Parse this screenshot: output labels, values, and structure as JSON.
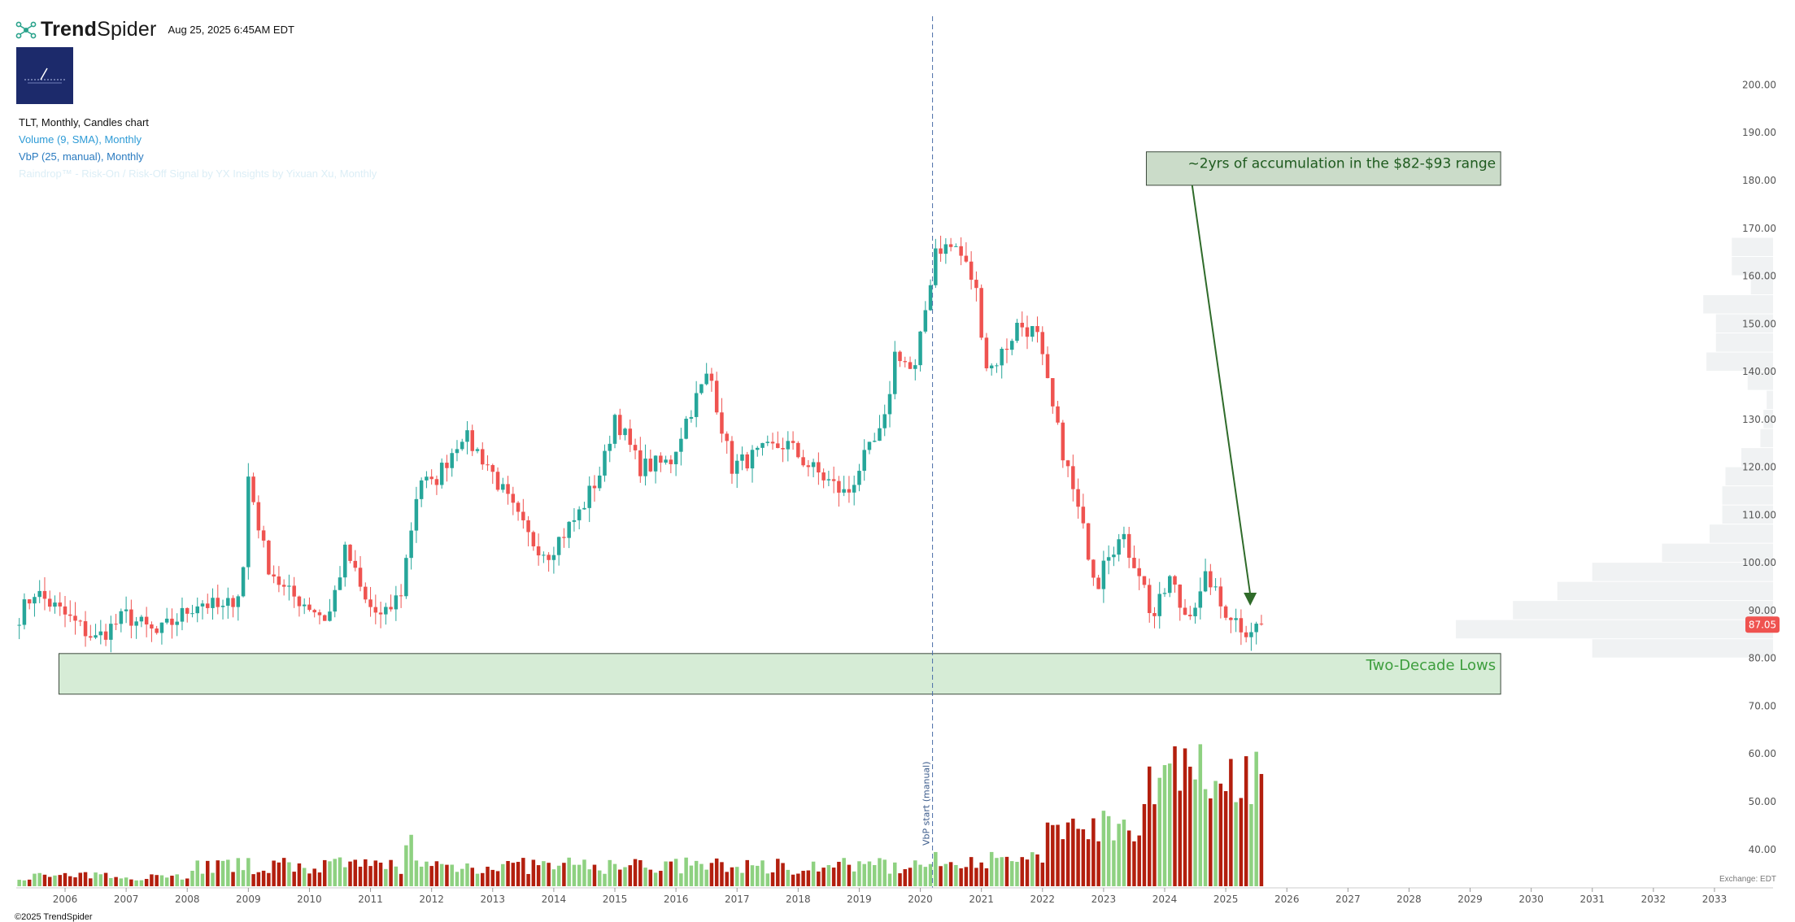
{
  "header": {
    "brand_part1": "Trend",
    "brand_part2": "Spider",
    "datetime": "Aug 25, 2025 6:45AM EDT"
  },
  "legend": {
    "line1": "TLT, Monthly, Candles chart",
    "line2": "Volume (9, SMA), Monthly",
    "line3": "VbP (25, manual), Monthly",
    "line4": "Raindrop™ - Risk-On / Risk-Off Signal by YX Insights by Yixuan Xu, Monthly"
  },
  "footer": {
    "copyright": "©2025 TrendSpider",
    "exchange": "Exchange: EDT"
  },
  "chart_data": {
    "type": "candlestick",
    "symbol": "TLT",
    "interval": "Monthly",
    "x_tick_labels": [
      "2006",
      "2007",
      "2008",
      "2009",
      "2010",
      "2011",
      "2012",
      "2013",
      "2014",
      "2015",
      "2016",
      "2017",
      "2018",
      "2019",
      "2020",
      "2021",
      "2022",
      "2023",
      "2024",
      "2025",
      "2026",
      "2027",
      "2028",
      "2029",
      "2030",
      "2031",
      "2032",
      "2033"
    ],
    "y_tick_labels": [
      "200.00",
      "190.00",
      "180.00",
      "170.00",
      "160.00",
      "150.00",
      "140.00",
      "130.00",
      "120.00",
      "110.00",
      "100.00",
      "90.00",
      "80.00",
      "70.00",
      "60.00",
      "50.00",
      "40.00"
    ],
    "ylim": [
      35,
      203
    ],
    "xlim": [
      2005.25,
      2034
    ],
    "last_price": "87.05",
    "key_points": [
      {
        "x": 2005.25,
        "price": 89
      },
      {
        "x": 2005.5,
        "price": 94
      },
      {
        "x": 2006.0,
        "price": 89
      },
      {
        "x": 2006.5,
        "price": 84
      },
      {
        "x": 2007.0,
        "price": 89
      },
      {
        "x": 2007.5,
        "price": 85
      },
      {
        "x": 2007.9,
        "price": 89
      },
      {
        "x": 2008.2,
        "price": 92
      },
      {
        "x": 2008.6,
        "price": 90
      },
      {
        "x": 2008.9,
        "price": 95
      },
      {
        "x": 2009.0,
        "price": 118
      },
      {
        "x": 2009.3,
        "price": 100
      },
      {
        "x": 2009.6,
        "price": 94
      },
      {
        "x": 2010.0,
        "price": 91
      },
      {
        "x": 2010.3,
        "price": 88
      },
      {
        "x": 2010.6,
        "price": 103
      },
      {
        "x": 2010.9,
        "price": 92
      },
      {
        "x": 2011.2,
        "price": 88
      },
      {
        "x": 2011.5,
        "price": 94
      },
      {
        "x": 2011.8,
        "price": 118
      },
      {
        "x": 2012.0,
        "price": 116
      },
      {
        "x": 2012.5,
        "price": 127
      },
      {
        "x": 2012.9,
        "price": 121
      },
      {
        "x": 2013.2,
        "price": 114
      },
      {
        "x": 2013.6,
        "price": 105
      },
      {
        "x": 2013.9,
        "price": 102
      },
      {
        "x": 2014.4,
        "price": 110
      },
      {
        "x": 2014.8,
        "price": 120
      },
      {
        "x": 2015.0,
        "price": 131
      },
      {
        "x": 2015.4,
        "price": 120
      },
      {
        "x": 2015.9,
        "price": 121
      },
      {
        "x": 2016.2,
        "price": 131
      },
      {
        "x": 2016.55,
        "price": 140
      },
      {
        "x": 2016.9,
        "price": 120
      },
      {
        "x": 2017.4,
        "price": 123
      },
      {
        "x": 2017.8,
        "price": 125
      },
      {
        "x": 2018.2,
        "price": 120
      },
      {
        "x": 2018.8,
        "price": 114
      },
      {
        "x": 2019.0,
        "price": 120
      },
      {
        "x": 2019.4,
        "price": 128
      },
      {
        "x": 2019.6,
        "price": 145
      },
      {
        "x": 2019.9,
        "price": 139
      },
      {
        "x": 2020.15,
        "price": 158
      },
      {
        "x": 2020.25,
        "price": 166
      },
      {
        "x": 2020.6,
        "price": 166
      },
      {
        "x": 2020.9,
        "price": 158
      },
      {
        "x": 2021.1,
        "price": 140
      },
      {
        "x": 2021.4,
        "price": 145
      },
      {
        "x": 2021.6,
        "price": 150
      },
      {
        "x": 2021.9,
        "price": 148
      },
      {
        "x": 2022.2,
        "price": 130
      },
      {
        "x": 2022.5,
        "price": 115
      },
      {
        "x": 2022.8,
        "price": 100
      },
      {
        "x": 2022.9,
        "price": 95
      },
      {
        "x": 2023.0,
        "price": 102
      },
      {
        "x": 2023.3,
        "price": 105
      },
      {
        "x": 2023.6,
        "price": 98
      },
      {
        "x": 2023.8,
        "price": 88
      },
      {
        "x": 2023.9,
        "price": 91
      },
      {
        "x": 2024.1,
        "price": 97
      },
      {
        "x": 2024.3,
        "price": 89
      },
      {
        "x": 2024.6,
        "price": 93
      },
      {
        "x": 2024.7,
        "price": 98
      },
      {
        "x": 2024.9,
        "price": 91
      },
      {
        "x": 2025.1,
        "price": 89
      },
      {
        "x": 2025.3,
        "price": 86
      },
      {
        "x": 2025.6,
        "price": 87
      }
    ],
    "volume_profile_rows": [
      {
        "low": 80,
        "high": 84,
        "volume": 0.57
      },
      {
        "low": 84,
        "high": 88,
        "volume": 1.0
      },
      {
        "low": 88,
        "high": 92,
        "volume": 0.82
      },
      {
        "low": 92,
        "high": 96,
        "volume": 0.68
      },
      {
        "low": 96,
        "high": 100,
        "volume": 0.57
      },
      {
        "low": 100,
        "high": 104,
        "volume": 0.35
      },
      {
        "low": 104,
        "high": 108,
        "volume": 0.2
      },
      {
        "low": 108,
        "high": 112,
        "volume": 0.16
      },
      {
        "low": 112,
        "high": 116,
        "volume": 0.16
      },
      {
        "low": 116,
        "high": 120,
        "volume": 0.15
      },
      {
        "low": 120,
        "high": 124,
        "volume": 0.1
      },
      {
        "low": 124,
        "high": 128,
        "volume": 0.04
      },
      {
        "low": 128,
        "high": 132,
        "volume": 0.03
      },
      {
        "low": 132,
        "high": 136,
        "volume": 0.02
      },
      {
        "low": 136,
        "high": 140,
        "volume": 0.08
      },
      {
        "low": 140,
        "high": 144,
        "volume": 0.21
      },
      {
        "low": 144,
        "high": 148,
        "volume": 0.18
      },
      {
        "low": 148,
        "high": 152,
        "volume": 0.18
      },
      {
        "low": 152,
        "high": 156,
        "volume": 0.22
      },
      {
        "low": 156,
        "high": 160,
        "volume": 0.07
      },
      {
        "low": 160,
        "high": 164,
        "volume": 0.13
      },
      {
        "low": 164,
        "high": 168,
        "volume": 0.13
      }
    ],
    "vbp_start_label": "VbP start (manual)",
    "vbp_start_x": 2020.2,
    "annotations": [
      {
        "text": "~2yrs of accumulation in the $82-$93 range",
        "box_x": [
          2023.7,
          2029.5
        ],
        "box_y": [
          179,
          186
        ],
        "arrow_from": [
          2024.45,
          179
        ],
        "arrow_to": [
          2025.4,
          91
        ]
      },
      {
        "text": "Two-Decade Lows",
        "zone_x": [
          2005.9,
          2029.5
        ],
        "zone_y": [
          72.5,
          81
        ]
      }
    ],
    "colors": {
      "up": "#26a69a",
      "down": "#ef5350",
      "vol_up": "#8ed181",
      "vol_down": "#b31f0e",
      "last_price_badge": "#ef5350",
      "zone_fill": "#d6ecd6",
      "annot_fill": "#cbdcc9",
      "annot_text": "#1e5a1e",
      "zone_text": "#3e9e3e",
      "arrow": "#2f6b2a",
      "vbp": "#f0f2f3"
    }
  }
}
